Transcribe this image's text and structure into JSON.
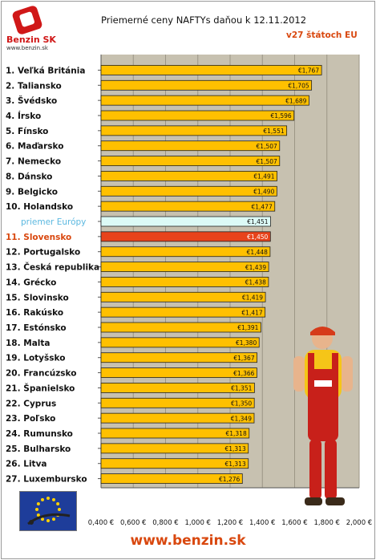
{
  "header": {
    "logo_text": "Benzin SK",
    "logo_url": "www.benzin.sk",
    "title": "Priemerné ceny NAFTYs daňou k 12.11.2012",
    "subtitle": "v27 štátoch EU"
  },
  "footer": {
    "url": "www.benzin.sk"
  },
  "colors": {
    "bar": "#ffc000",
    "bar_highlight": "#e8431b",
    "bar_average": "#dcfaf6",
    "plot_background": "#c7c1b0",
    "highlight_text": "#d9480f",
    "average_text": "#5bb8e0"
  },
  "icons": [
    "benzin-logo-icon",
    "eu-flag-icon",
    "worker-mascot-icon"
  ],
  "chart_data": {
    "type": "bar",
    "orientation": "horizontal",
    "title": "Priemerné ceny NAFTYs daňou k 12.11.2012",
    "subtitle": "v27 štátoch EU",
    "xlim": [
      0.4,
      2.0
    ],
    "grid": true,
    "categories": [
      "1. Veľká Británia",
      "2. Taliansko",
      "3. Švédsko",
      "4. Írsko",
      "5. Fínsko",
      "6. Maďarsko",
      "7. Nemecko",
      "8. Dánsko",
      "9. Belgicko",
      "10. Holandsko",
      "priemer Európy",
      "11. Slovensko",
      "12. Portugalsko",
      "13. Česká republika",
      "14. Grécko",
      "15. Slovinsko",
      "16. Rakúsko",
      "17. Estónsko",
      "18. Malta",
      "19. Lotyšsko",
      "20. Francúzsko",
      "21. Španielsko",
      "22. Cyprus",
      "23. Poľsko",
      "24. Rumunsko",
      "25. Bulharsko",
      "26. Litva",
      "27. Luxembursko"
    ],
    "values": [
      1.767,
      1.705,
      1.689,
      1.596,
      1.551,
      1.507,
      1.507,
      1.491,
      1.49,
      1.477,
      1.451,
      1.45,
      1.448,
      1.439,
      1.438,
      1.419,
      1.417,
      1.391,
      1.38,
      1.367,
      1.366,
      1.351,
      1.35,
      1.349,
      1.318,
      1.313,
      1.313,
      1.276
    ],
    "value_labels": [
      "€1,767",
      "€1,705",
      "€1,689",
      "€1,596",
      "€1,551",
      "€1,507",
      "€1,507",
      "€1,491",
      "€1,490",
      "€1,477",
      "€1,451",
      "€1,450",
      "€1,448",
      "€1,439",
      "€1,438",
      "€1,419",
      "€1,417",
      "€1,391",
      "€1,380",
      "€1,367",
      "€1,366",
      "€1,351",
      "€1,350",
      "€1,349",
      "€1,318",
      "€1,313",
      "€1,313",
      "€1,276"
    ],
    "x_ticks": [
      "0,400 €",
      "0,600 €",
      "0,800 €",
      "1,000 €",
      "1,200 €",
      "1,400 €",
      "1,600 €",
      "1,800 €",
      "2,000 €"
    ],
    "x_tick_values": [
      0.4,
      0.6,
      0.8,
      1.0,
      1.2,
      1.4,
      1.6,
      1.8,
      2.0
    ],
    "highlight_index": 11,
    "average_index": 10
  }
}
